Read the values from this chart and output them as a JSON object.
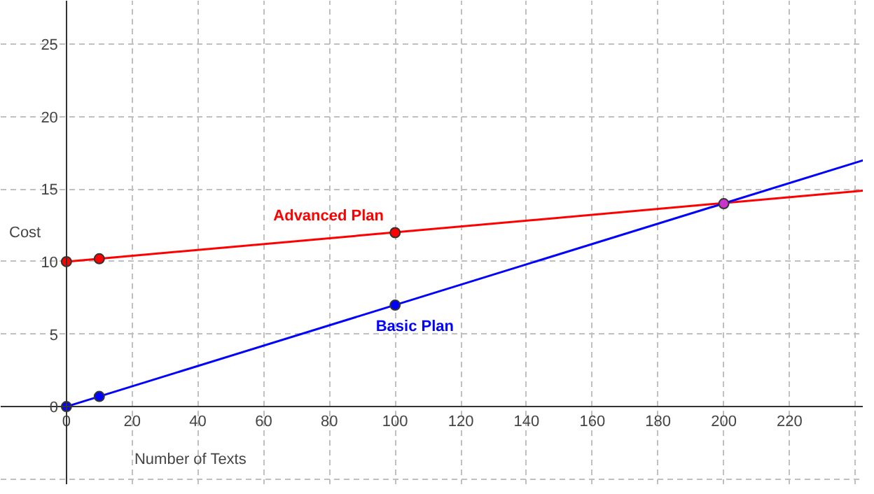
{
  "chart_data": {
    "type": "line",
    "xlabel": "Number of Texts",
    "ylabel": "Cost",
    "xlim": [
      -20,
      242.5
    ],
    "ylim": [
      -5.4,
      28
    ],
    "xticks": [
      0,
      20,
      40,
      60,
      80,
      100,
      120,
      140,
      160,
      180,
      200,
      220,
      {
        "value": 240,
        "label": null
      }
    ],
    "yticks": [
      {
        "value": -5,
        "label": null
      },
      0,
      5,
      10,
      15,
      20,
      25
    ],
    "grid": true,
    "line_style": "solid",
    "series": [
      {
        "name": "Advanced Plan",
        "color": "#ff0000",
        "x": [
          0,
          242.5
        ],
        "values": [
          10,
          14.9
        ]
      },
      {
        "name": "Basic Plan",
        "color": "#0000ff",
        "x": [
          0,
          242.5
        ],
        "values": [
          0,
          17
        ]
      },
      {
        "type": "scatter",
        "color": "#ff0000",
        "x": [
          0,
          10,
          100
        ],
        "values": [
          10,
          10.2,
          12
        ]
      },
      {
        "type": "scatter",
        "color": "#0000ff",
        "x": [
          0,
          10,
          100
        ],
        "values": [
          0,
          0.7,
          7
        ]
      },
      {
        "type": "scatter",
        "color": "#cc33cc",
        "x": [
          200
        ],
        "values": [
          14
        ]
      }
    ]
  }
}
